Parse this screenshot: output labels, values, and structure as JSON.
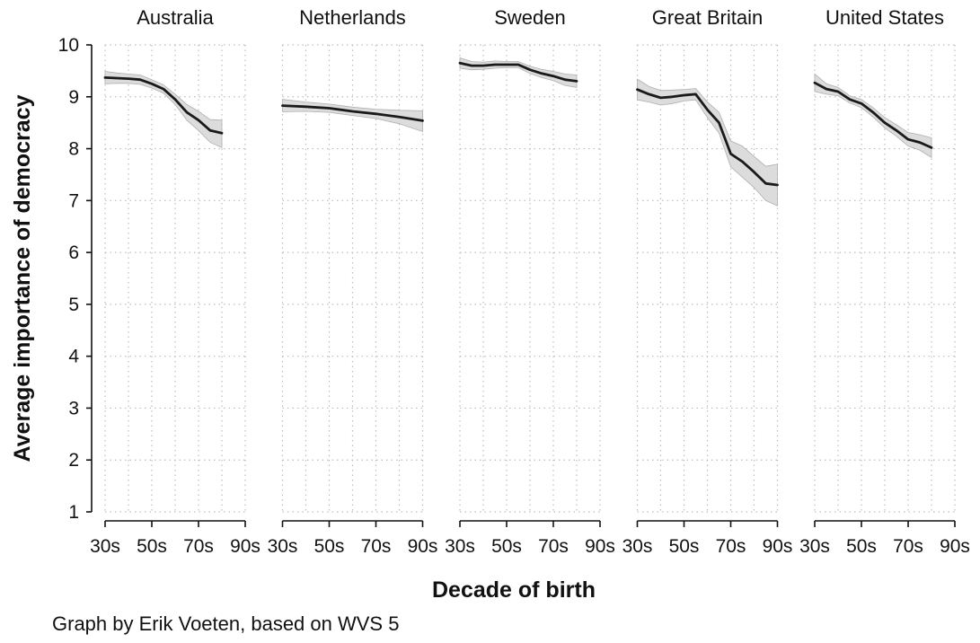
{
  "caption": "Graph by Erik Voeten, based on WVS 5",
  "chart_data": {
    "type": "line",
    "xlabel": "Decade of birth",
    "ylabel": "Average importance of democracy",
    "ylim": [
      1,
      10
    ],
    "yticks": [
      1,
      2,
      3,
      4,
      5,
      6,
      7,
      8,
      9,
      10
    ],
    "xlim": [
      1930,
      1990
    ],
    "xticks": [
      1930,
      1950,
      1970,
      1990
    ],
    "xtick_labels": [
      "30s",
      "50s",
      "70s",
      "90s"
    ],
    "grid": true,
    "facets": [
      {
        "title": "Australia",
        "x": [
          1930,
          1935,
          1940,
          1945,
          1950,
          1955,
          1960,
          1965,
          1970,
          1975,
          1980
        ],
        "y": [
          9.37,
          9.36,
          9.35,
          9.33,
          9.25,
          9.15,
          8.95,
          8.7,
          8.55,
          8.35,
          8.3
        ],
        "lower": [
          9.25,
          9.26,
          9.26,
          9.24,
          9.17,
          9.07,
          8.85,
          8.55,
          8.35,
          8.12,
          8.02
        ],
        "upper": [
          9.49,
          9.46,
          9.44,
          9.42,
          9.33,
          9.23,
          9.05,
          8.85,
          8.72,
          8.56,
          8.55
        ]
      },
      {
        "title": "Netherlands",
        "x": [
          1930,
          1940,
          1950,
          1960,
          1970,
          1980,
          1990
        ],
        "y": [
          8.83,
          8.81,
          8.78,
          8.72,
          8.67,
          8.61,
          8.54
        ],
        "lower": [
          8.71,
          8.72,
          8.7,
          8.64,
          8.58,
          8.48,
          8.33
        ],
        "upper": [
          8.95,
          8.9,
          8.86,
          8.8,
          8.76,
          8.74,
          8.73
        ]
      },
      {
        "title": "Sweden",
        "x": [
          1930,
          1935,
          1940,
          1945,
          1950,
          1955,
          1960,
          1965,
          1970,
          1975,
          1980
        ],
        "y": [
          9.65,
          9.6,
          9.6,
          9.62,
          9.62,
          9.62,
          9.52,
          9.45,
          9.4,
          9.33,
          9.3
        ],
        "lower": [
          9.55,
          9.52,
          9.53,
          9.55,
          9.56,
          9.56,
          9.45,
          9.37,
          9.31,
          9.22,
          9.18
        ],
        "upper": [
          9.75,
          9.68,
          9.67,
          9.69,
          9.68,
          9.68,
          9.59,
          9.53,
          9.49,
          9.44,
          9.42
        ]
      },
      {
        "title": "Great Britain",
        "x": [
          1930,
          1935,
          1940,
          1945,
          1950,
          1955,
          1960,
          1965,
          1970,
          1975,
          1980,
          1985,
          1990
        ],
        "y": [
          9.14,
          9.05,
          8.98,
          9.0,
          9.03,
          9.05,
          8.75,
          8.5,
          7.9,
          7.75,
          7.55,
          7.33,
          7.3
        ],
        "lower": [
          8.94,
          8.9,
          8.84,
          8.87,
          8.92,
          8.94,
          8.6,
          8.3,
          7.65,
          7.45,
          7.25,
          7.0,
          6.9
        ],
        "upper": [
          9.34,
          9.2,
          9.12,
          9.13,
          9.14,
          9.16,
          8.9,
          8.7,
          8.15,
          8.05,
          7.85,
          7.66,
          7.7
        ]
      },
      {
        "title": "United States",
        "x": [
          1930,
          1935,
          1940,
          1945,
          1950,
          1955,
          1960,
          1965,
          1970,
          1975,
          1980
        ],
        "y": [
          9.27,
          9.15,
          9.1,
          8.95,
          8.87,
          8.7,
          8.5,
          8.35,
          8.18,
          8.12,
          8.02
        ],
        "lower": [
          9.1,
          9.05,
          9.02,
          8.88,
          8.79,
          8.61,
          8.4,
          8.24,
          8.05,
          7.97,
          7.83
        ],
        "upper": [
          9.44,
          9.25,
          9.18,
          9.02,
          8.95,
          8.79,
          8.6,
          8.46,
          8.31,
          8.27,
          8.21
        ]
      }
    ]
  }
}
